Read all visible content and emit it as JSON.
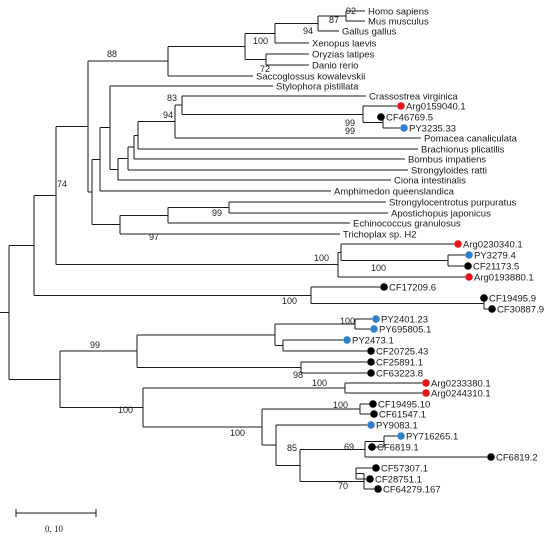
{
  "colors": {
    "line": "#1a1a1a",
    "red_marker": "#e8141c",
    "blue_marker": "#2f7fc9",
    "black_marker": "#000000"
  },
  "taxa": [
    {
      "label": "Homo sapiens",
      "marker": null
    },
    {
      "label": "Mus musculus",
      "marker": null
    },
    {
      "label": "Gallus gallus",
      "marker": null
    },
    {
      "label": "Xenopus laevis",
      "marker": null
    },
    {
      "label": "Oryzias latipes",
      "marker": null
    },
    {
      "label": "Danio rerio",
      "marker": null
    },
    {
      "label": "Saccoglossus kowalevskii",
      "marker": null
    },
    {
      "label": "Stylophora pistillata",
      "marker": null
    },
    {
      "label": "Crassostrea virginica",
      "marker": null
    },
    {
      "label": "Arg0159040.1",
      "marker": "red"
    },
    {
      "label": "CF46769.5",
      "marker": "black"
    },
    {
      "label": "PY3235.33",
      "marker": "blue"
    },
    {
      "label": "Pomacea canaliculata",
      "marker": null
    },
    {
      "label": "Brachionus plicatilis",
      "marker": null
    },
    {
      "label": "Bombus impatiens",
      "marker": null
    },
    {
      "label": "Strongyloides ratti",
      "marker": null
    },
    {
      "label": "Ciona intestinalis",
      "marker": null
    },
    {
      "label": "Amphimedon  queenslandica",
      "marker": null
    },
    {
      "label": "Strongylocentrotus purpuratus",
      "marker": null
    },
    {
      "label": "Apostichopus japonicus",
      "marker": null
    },
    {
      "label": "Echinococcus granulosus",
      "marker": null
    },
    {
      "label": "Trichoplax sp. H2",
      "marker": null
    },
    {
      "label": "Arg0230340.1",
      "marker": "red"
    },
    {
      "label": "PY3279.4",
      "marker": "blue"
    },
    {
      "label": "CF21173.5",
      "marker": "black"
    },
    {
      "label": "Arg0193880.1",
      "marker": "red"
    },
    {
      "label": "CF17209.6",
      "marker": "black"
    },
    {
      "label": "CF19495.9",
      "marker": "black"
    },
    {
      "label": "CF30887.9",
      "marker": "black"
    },
    {
      "label": "PY2401.23",
      "marker": "blue"
    },
    {
      "label": "PY695805.1",
      "marker": "blue"
    },
    {
      "label": "PY2473.1",
      "marker": "blue"
    },
    {
      "label": "CF20725.43",
      "marker": "black"
    },
    {
      "label": "CF25891.1",
      "marker": "black"
    },
    {
      "label": "CF63223.8",
      "marker": "black"
    },
    {
      "label": "Arg0233380.1",
      "marker": "red"
    },
    {
      "label": "Arg0244310.1",
      "marker": "red"
    },
    {
      "label": "CF19495.10",
      "marker": "black"
    },
    {
      "label": "CF61547.1",
      "marker": "black"
    },
    {
      "label": "PY9083.1",
      "marker": "blue"
    },
    {
      "label": "PY716265.1",
      "marker": "blue"
    },
    {
      "label": "CF6819.1",
      "marker": "black"
    },
    {
      "label": "CF6819.2",
      "marker": "black"
    },
    {
      "label": "CF57307.1",
      "marker": "black"
    },
    {
      "label": "CF28751.1",
      "marker": "black"
    },
    {
      "label": "CF64279.167",
      "marker": "black"
    }
  ],
  "bootstrap": [
    "92",
    "87",
    "94",
    "100",
    "72",
    "88",
    "83",
    "94",
    "99",
    "99",
    "74",
    "99",
    "97",
    "100",
    "100",
    "100",
    "100",
    "99",
    "98",
    "100",
    "100",
    "100",
    "100",
    "85",
    "69",
    "70"
  ],
  "scale_bar": {
    "label": "0. 10"
  }
}
